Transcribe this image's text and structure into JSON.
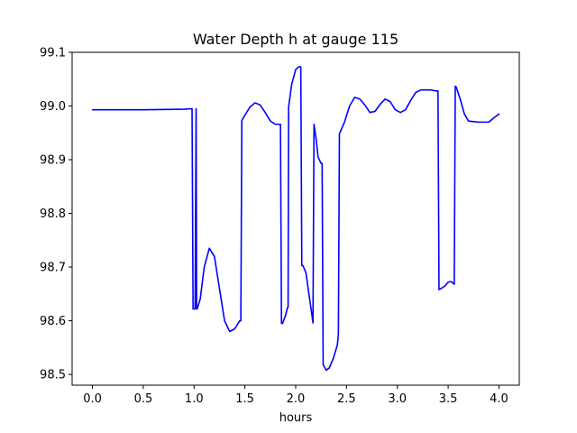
{
  "chart_data": {
    "type": "line",
    "title": "Water Depth h at gauge 115",
    "xlabel": "hours",
    "ylabel": "",
    "xlim": [
      -0.2,
      4.2
    ],
    "ylim": [
      98.48,
      99.1
    ],
    "xticks": [
      0.0,
      0.5,
      1.0,
      1.5,
      2.0,
      2.5,
      3.0,
      3.5,
      4.0
    ],
    "xtick_labels": [
      "0.0",
      "0.5",
      "1.0",
      "1.5",
      "2.0",
      "2.5",
      "3.0",
      "3.5",
      "4.0"
    ],
    "yticks": [
      98.5,
      98.6,
      98.7,
      98.8,
      98.9,
      99.0,
      99.1
    ],
    "ytick_labels": [
      "98.5",
      "98.6",
      "98.7",
      "98.8",
      "98.9",
      "99.0",
      "99.1"
    ],
    "grid": false,
    "series": [
      {
        "color": "#0000ff",
        "x": [
          0.0,
          0.5,
          0.9,
          0.98,
          0.99,
          1.01,
          1.02,
          1.025,
          1.03,
          1.06,
          1.1,
          1.15,
          1.2,
          1.25,
          1.3,
          1.35,
          1.4,
          1.45,
          1.46,
          1.47,
          1.5,
          1.55,
          1.6,
          1.65,
          1.7,
          1.75,
          1.8,
          1.85,
          1.86,
          1.87,
          1.9,
          1.92,
          1.925,
          1.93,
          1.96,
          2.0,
          2.03,
          2.05,
          2.06,
          2.07,
          2.1,
          2.13,
          2.16,
          2.17,
          2.18,
          2.2,
          2.22,
          2.25,
          2.26,
          2.27,
          2.3,
          2.33,
          2.37,
          2.41,
          2.42,
          2.43,
          2.48,
          2.53,
          2.58,
          2.63,
          2.68,
          2.73,
          2.78,
          2.83,
          2.88,
          2.93,
          2.98,
          3.03,
          3.08,
          3.13,
          3.18,
          3.23,
          3.28,
          3.33,
          3.38,
          3.4,
          3.41,
          3.43,
          3.47,
          3.5,
          3.53,
          3.56,
          3.57,
          3.58,
          3.62,
          3.66,
          3.7,
          3.75,
          3.8,
          3.85,
          3.9,
          3.95,
          4.0
        ],
        "y": [
          98.993,
          98.993,
          98.994,
          98.995,
          98.622,
          98.622,
          98.995,
          98.622,
          98.622,
          98.64,
          98.7,
          98.735,
          98.72,
          98.66,
          98.6,
          98.58,
          98.585,
          98.6,
          98.6,
          98.973,
          98.983,
          98.998,
          99.006,
          99.002,
          98.988,
          98.972,
          98.966,
          98.966,
          98.595,
          98.595,
          98.61,
          98.625,
          98.625,
          98.998,
          99.04,
          99.068,
          99.073,
          99.073,
          98.703,
          98.703,
          98.69,
          98.65,
          98.61,
          98.596,
          98.966,
          98.94,
          98.905,
          98.893,
          98.893,
          98.518,
          98.508,
          98.512,
          98.53,
          98.555,
          98.575,
          98.948,
          98.97,
          99.0,
          99.016,
          99.013,
          99.002,
          98.988,
          98.99,
          99.003,
          99.013,
          99.008,
          98.993,
          98.988,
          98.993,
          99.01,
          99.025,
          99.03,
          99.03,
          99.03,
          99.028,
          99.028,
          98.658,
          98.66,
          98.665,
          98.672,
          98.673,
          98.668,
          99.037,
          99.035,
          99.012,
          98.985,
          98.972,
          98.971,
          98.97,
          98.97,
          98.97,
          98.978,
          98.985
        ]
      }
    ]
  }
}
